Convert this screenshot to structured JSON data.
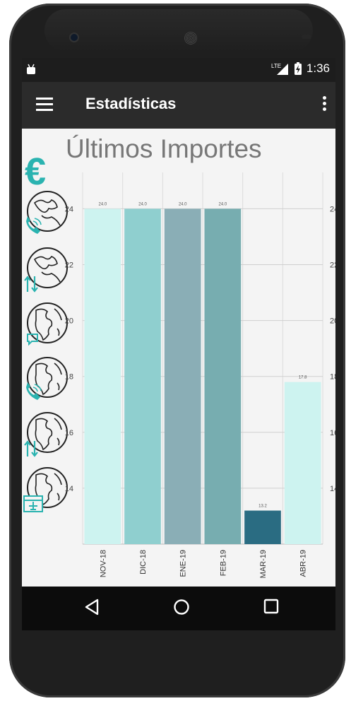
{
  "status_bar": {
    "network": "LTE",
    "time": "1:36"
  },
  "app_bar": {
    "title": "Estadísticas",
    "menu_icon": "hamburger-menu-icon",
    "overflow_icon": "more-vert-icon"
  },
  "side_icons": [
    {
      "icon": "globe-europe-call-icon",
      "badge": "call-icon"
    },
    {
      "icon": "globe-europe-data-icon",
      "badge": "data-transfer-icon"
    },
    {
      "icon": "globe-americas-sms-icon",
      "badge": "sms-icon"
    },
    {
      "icon": "globe-americas-call-icon",
      "badge": "call-icon"
    },
    {
      "icon": "globe-americas-data-icon",
      "badge": "data-transfer-icon"
    },
    {
      "icon": "globe-americas-travel-icon",
      "badge": "calendar-plane-icon"
    }
  ],
  "nav_bar": {
    "back_icon": "back-triangle-icon",
    "home_icon": "home-circle-icon",
    "recent_icon": "recent-apps-square-icon"
  },
  "chart_data": {
    "type": "bar",
    "title": "Últimos Importes",
    "icon": "euro-icon",
    "categories": [
      "NOV-18",
      "DIC-18",
      "ENE-19",
      "FEB-19",
      "MAR-19",
      "ABR-19"
    ],
    "values": [
      24.0,
      24.0,
      24.0,
      24.0,
      13.2,
      17.8
    ],
    "value_labels": [
      "24.0",
      "24.0",
      "24.0",
      "24.0",
      "13.2",
      "17.8"
    ],
    "colors": [
      "#cdf3f0",
      "#8fcfcf",
      "#8aaeb6",
      "#77adb0",
      "#2a6c82",
      "#cdf3f0"
    ],
    "ylim": [
      12.0,
      25.3
    ],
    "yticks": [
      14,
      16,
      18,
      20,
      22,
      24
    ],
    "ytick_labels": [
      "14",
      "16",
      "18",
      "20",
      "22",
      "24"
    ],
    "xlabel": "",
    "ylabel": "",
    "grid": true,
    "legend": "none",
    "axis_labels_right": true
  }
}
